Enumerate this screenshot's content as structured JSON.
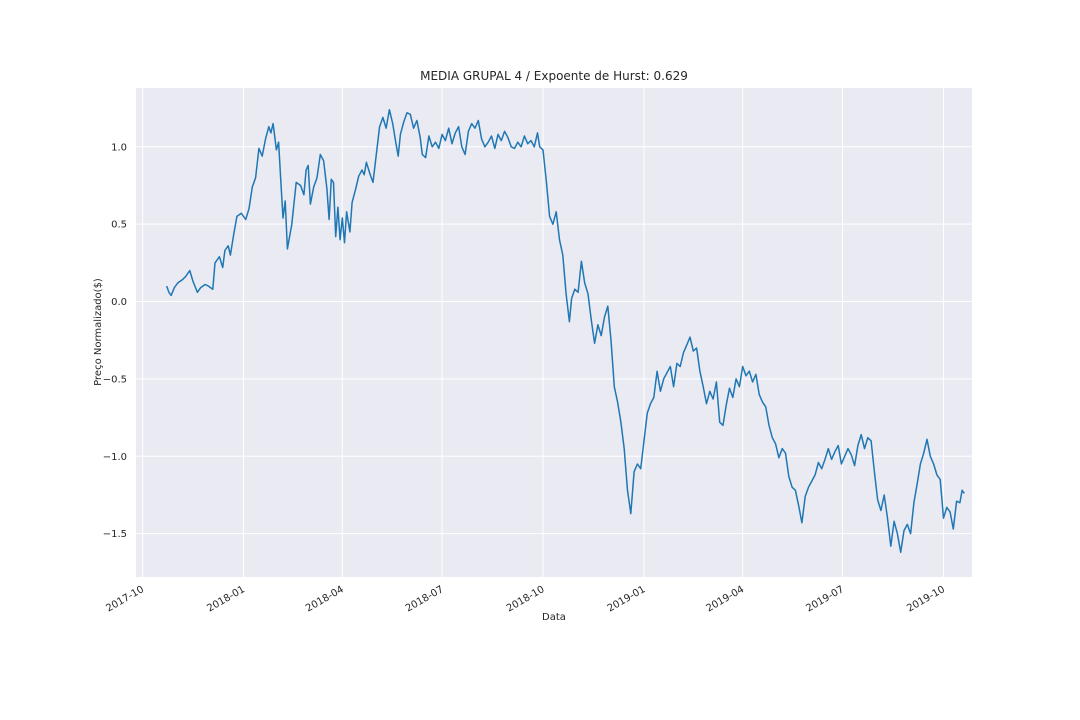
{
  "chart_data": {
    "type": "line",
    "title": "MEDIA GRUPAL 4 / Expoente de Hurst: 0.629",
    "xlabel": "Data",
    "ylabel": "Preço Normalizado($)",
    "xlim": [
      "2017-09-25",
      "2019-10-27"
    ],
    "ylim": [
      -1.78,
      1.38
    ],
    "grid": true,
    "background": "#eaeaf2",
    "line_color": "#1f77b4",
    "x_ticks": [
      "2017-10-01",
      "2018-01-01",
      "2018-04-01",
      "2018-07-01",
      "2018-10-01",
      "2019-01-01",
      "2019-04-01",
      "2019-07-01",
      "2019-10-01"
    ],
    "x_tick_labels": [
      "2017-10",
      "2018-01",
      "2018-04",
      "2018-07",
      "2018-10",
      "2019-01",
      "2019-04",
      "2019-07",
      "2019-10"
    ],
    "y_ticks": [
      1.0,
      0.5,
      0.0,
      -0.5,
      -1.0,
      -1.5
    ],
    "y_tick_labels": [
      "1.0",
      "0.5",
      "0.0",
      "−0.5",
      "−1.0",
      "−1.5"
    ],
    "series": [
      {
        "points": [
          [
            "2017-10-23",
            0.1
          ],
          [
            "2017-10-25",
            0.06
          ],
          [
            "2017-10-27",
            0.04
          ],
          [
            "2017-10-30",
            0.09
          ],
          [
            "2017-11-02",
            0.12
          ],
          [
            "2017-11-06",
            0.14
          ],
          [
            "2017-11-09",
            0.16
          ],
          [
            "2017-11-13",
            0.2
          ],
          [
            "2017-11-16",
            0.13
          ],
          [
            "2017-11-20",
            0.06
          ],
          [
            "2017-11-23",
            0.09
          ],
          [
            "2017-11-27",
            0.11
          ],
          [
            "2017-11-30",
            0.1
          ],
          [
            "2017-12-04",
            0.08
          ],
          [
            "2017-12-06",
            0.25
          ],
          [
            "2017-12-10",
            0.29
          ],
          [
            "2017-12-13",
            0.22
          ],
          [
            "2017-12-15",
            0.33
          ],
          [
            "2017-12-18",
            0.36
          ],
          [
            "2017-12-20",
            0.3
          ],
          [
            "2017-12-23",
            0.43
          ],
          [
            "2017-12-26",
            0.55
          ],
          [
            "2017-12-30",
            0.57
          ],
          [
            "2018-01-03",
            0.53
          ],
          [
            "2018-01-06",
            0.6
          ],
          [
            "2018-01-09",
            0.74
          ],
          [
            "2018-01-12",
            0.8
          ],
          [
            "2018-01-15",
            0.99
          ],
          [
            "2018-01-18",
            0.94
          ],
          [
            "2018-01-21",
            1.05
          ],
          [
            "2018-01-24",
            1.13
          ],
          [
            "2018-01-26",
            1.09
          ],
          [
            "2018-01-28",
            1.15
          ],
          [
            "2018-01-31",
            0.98
          ],
          [
            "2018-02-02",
            1.03
          ],
          [
            "2018-02-04",
            0.78
          ],
          [
            "2018-02-06",
            0.54
          ],
          [
            "2018-02-08",
            0.65
          ],
          [
            "2018-02-10",
            0.34
          ],
          [
            "2018-02-14",
            0.5
          ],
          [
            "2018-02-18",
            0.77
          ],
          [
            "2018-02-22",
            0.75
          ],
          [
            "2018-02-25",
            0.69
          ],
          [
            "2018-02-27",
            0.85
          ],
          [
            "2018-03-01",
            0.88
          ],
          [
            "2018-03-03",
            0.63
          ],
          [
            "2018-03-06",
            0.74
          ],
          [
            "2018-03-09",
            0.8
          ],
          [
            "2018-03-12",
            0.95
          ],
          [
            "2018-03-15",
            0.91
          ],
          [
            "2018-03-18",
            0.73
          ],
          [
            "2018-03-20",
            0.53
          ],
          [
            "2018-03-22",
            0.79
          ],
          [
            "2018-03-24",
            0.77
          ],
          [
            "2018-03-26",
            0.42
          ],
          [
            "2018-03-28",
            0.61
          ],
          [
            "2018-03-30",
            0.4
          ],
          [
            "2018-04-01",
            0.54
          ],
          [
            "2018-04-03",
            0.38
          ],
          [
            "2018-04-05",
            0.58
          ],
          [
            "2018-04-08",
            0.45
          ],
          [
            "2018-04-10",
            0.64
          ],
          [
            "2018-04-13",
            0.72
          ],
          [
            "2018-04-16",
            0.81
          ],
          [
            "2018-04-19",
            0.85
          ],
          [
            "2018-04-21",
            0.82
          ],
          [
            "2018-04-23",
            0.9
          ],
          [
            "2018-04-26",
            0.83
          ],
          [
            "2018-04-29",
            0.77
          ],
          [
            "2018-05-02",
            0.95
          ],
          [
            "2018-05-05",
            1.13
          ],
          [
            "2018-05-08",
            1.19
          ],
          [
            "2018-05-11",
            1.12
          ],
          [
            "2018-05-14",
            1.24
          ],
          [
            "2018-05-17",
            1.15
          ],
          [
            "2018-05-20",
            1.02
          ],
          [
            "2018-05-22",
            0.94
          ],
          [
            "2018-05-24",
            1.08
          ],
          [
            "2018-05-27",
            1.16
          ],
          [
            "2018-05-30",
            1.22
          ],
          [
            "2018-06-02",
            1.21
          ],
          [
            "2018-06-05",
            1.12
          ],
          [
            "2018-06-08",
            1.17
          ],
          [
            "2018-06-11",
            1.06
          ],
          [
            "2018-06-13",
            0.95
          ],
          [
            "2018-06-16",
            0.93
          ],
          [
            "2018-06-19",
            1.07
          ],
          [
            "2018-06-22",
            1.0
          ],
          [
            "2018-06-25",
            1.03
          ],
          [
            "2018-06-28",
            0.99
          ],
          [
            "2018-07-01",
            1.08
          ],
          [
            "2018-07-04",
            1.04
          ],
          [
            "2018-07-07",
            1.12
          ],
          [
            "2018-07-10",
            1.02
          ],
          [
            "2018-07-13",
            1.09
          ],
          [
            "2018-07-16",
            1.13
          ],
          [
            "2018-07-19",
            1.0
          ],
          [
            "2018-07-22",
            0.95
          ],
          [
            "2018-07-25",
            1.1
          ],
          [
            "2018-07-28",
            1.15
          ],
          [
            "2018-07-31",
            1.12
          ],
          [
            "2018-08-03",
            1.17
          ],
          [
            "2018-08-06",
            1.05
          ],
          [
            "2018-08-09",
            1.0
          ],
          [
            "2018-08-12",
            1.03
          ],
          [
            "2018-08-15",
            1.07
          ],
          [
            "2018-08-18",
            0.99
          ],
          [
            "2018-08-21",
            1.08
          ],
          [
            "2018-08-24",
            1.04
          ],
          [
            "2018-08-27",
            1.1
          ],
          [
            "2018-08-30",
            1.06
          ],
          [
            "2018-09-02",
            1.0
          ],
          [
            "2018-09-05",
            0.99
          ],
          [
            "2018-09-08",
            1.03
          ],
          [
            "2018-09-11",
            1.0
          ],
          [
            "2018-09-14",
            1.07
          ],
          [
            "2018-09-17",
            1.02
          ],
          [
            "2018-09-20",
            1.04
          ],
          [
            "2018-09-23",
            1.0
          ],
          [
            "2018-09-26",
            1.09
          ],
          [
            "2018-09-28",
            1.0
          ],
          [
            "2018-10-01",
            0.98
          ],
          [
            "2018-10-04",
            0.78
          ],
          [
            "2018-10-07",
            0.55
          ],
          [
            "2018-10-10",
            0.5
          ],
          [
            "2018-10-13",
            0.58
          ],
          [
            "2018-10-16",
            0.4
          ],
          [
            "2018-10-19",
            0.3
          ],
          [
            "2018-10-22",
            0.05
          ],
          [
            "2018-10-25",
            -0.13
          ],
          [
            "2018-10-27",
            0.02
          ],
          [
            "2018-10-30",
            0.08
          ],
          [
            "2018-11-02",
            0.06
          ],
          [
            "2018-11-05",
            0.26
          ],
          [
            "2018-11-08",
            0.12
          ],
          [
            "2018-11-11",
            0.05
          ],
          [
            "2018-11-14",
            -0.12
          ],
          [
            "2018-11-17",
            -0.27
          ],
          [
            "2018-11-20",
            -0.15
          ],
          [
            "2018-11-23",
            -0.22
          ],
          [
            "2018-11-26",
            -0.1
          ],
          [
            "2018-11-29",
            -0.03
          ],
          [
            "2018-12-02",
            -0.25
          ],
          [
            "2018-12-05",
            -0.55
          ],
          [
            "2018-12-08",
            -0.65
          ],
          [
            "2018-12-11",
            -0.78
          ],
          [
            "2018-12-14",
            -0.95
          ],
          [
            "2018-12-17",
            -1.22
          ],
          [
            "2018-12-20",
            -1.37
          ],
          [
            "2018-12-23",
            -1.1
          ],
          [
            "2018-12-26",
            -1.05
          ],
          [
            "2018-12-29",
            -1.08
          ],
          [
            "2019-01-01",
            -0.9
          ],
          [
            "2019-01-04",
            -0.72
          ],
          [
            "2019-01-07",
            -0.66
          ],
          [
            "2019-01-10",
            -0.62
          ],
          [
            "2019-01-13",
            -0.45
          ],
          [
            "2019-01-16",
            -0.58
          ],
          [
            "2019-01-19",
            -0.5
          ],
          [
            "2019-01-22",
            -0.46
          ],
          [
            "2019-01-25",
            -0.42
          ],
          [
            "2019-01-28",
            -0.55
          ],
          [
            "2019-01-31",
            -0.4
          ],
          [
            "2019-02-03",
            -0.42
          ],
          [
            "2019-02-06",
            -0.33
          ],
          [
            "2019-02-09",
            -0.28
          ],
          [
            "2019-02-12",
            -0.23
          ],
          [
            "2019-02-15",
            -0.32
          ],
          [
            "2019-02-18",
            -0.3
          ],
          [
            "2019-02-21",
            -0.45
          ],
          [
            "2019-02-24",
            -0.55
          ],
          [
            "2019-02-27",
            -0.66
          ],
          [
            "2019-03-02",
            -0.58
          ],
          [
            "2019-03-05",
            -0.63
          ],
          [
            "2019-03-08",
            -0.52
          ],
          [
            "2019-03-11",
            -0.78
          ],
          [
            "2019-03-14",
            -0.8
          ],
          [
            "2019-03-17",
            -0.67
          ],
          [
            "2019-03-20",
            -0.56
          ],
          [
            "2019-03-23",
            -0.62
          ],
          [
            "2019-03-26",
            -0.5
          ],
          [
            "2019-03-29",
            -0.55
          ],
          [
            "2019-04-01",
            -0.42
          ],
          [
            "2019-04-04",
            -0.48
          ],
          [
            "2019-04-07",
            -0.45
          ],
          [
            "2019-04-10",
            -0.52
          ],
          [
            "2019-04-13",
            -0.47
          ],
          [
            "2019-04-16",
            -0.6
          ],
          [
            "2019-04-19",
            -0.65
          ],
          [
            "2019-04-22",
            -0.68
          ],
          [
            "2019-04-25",
            -0.8
          ],
          [
            "2019-04-28",
            -0.88
          ],
          [
            "2019-05-01",
            -0.92
          ],
          [
            "2019-05-04",
            -1.01
          ],
          [
            "2019-05-07",
            -0.95
          ],
          [
            "2019-05-10",
            -0.98
          ],
          [
            "2019-05-13",
            -1.13
          ],
          [
            "2019-05-16",
            -1.2
          ],
          [
            "2019-05-19",
            -1.22
          ],
          [
            "2019-05-22",
            -1.32
          ],
          [
            "2019-05-25",
            -1.43
          ],
          [
            "2019-05-28",
            -1.26
          ],
          [
            "2019-05-31",
            -1.2
          ],
          [
            "2019-06-03",
            -1.16
          ],
          [
            "2019-06-06",
            -1.12
          ],
          [
            "2019-06-09",
            -1.04
          ],
          [
            "2019-06-12",
            -1.08
          ],
          [
            "2019-06-15",
            -1.02
          ],
          [
            "2019-06-18",
            -0.95
          ],
          [
            "2019-06-21",
            -1.02
          ],
          [
            "2019-06-24",
            -0.97
          ],
          [
            "2019-06-27",
            -0.93
          ],
          [
            "2019-06-30",
            -1.05
          ],
          [
            "2019-07-03",
            -1.0
          ],
          [
            "2019-07-06",
            -0.95
          ],
          [
            "2019-07-09",
            -0.99
          ],
          [
            "2019-07-12",
            -1.06
          ],
          [
            "2019-07-15",
            -0.93
          ],
          [
            "2019-07-18",
            -0.86
          ],
          [
            "2019-07-21",
            -0.95
          ],
          [
            "2019-07-24",
            -0.88
          ],
          [
            "2019-07-27",
            -0.9
          ],
          [
            "2019-07-30",
            -1.1
          ],
          [
            "2019-08-02",
            -1.28
          ],
          [
            "2019-08-05",
            -1.35
          ],
          [
            "2019-08-08",
            -1.25
          ],
          [
            "2019-08-11",
            -1.4
          ],
          [
            "2019-08-14",
            -1.58
          ],
          [
            "2019-08-17",
            -1.42
          ],
          [
            "2019-08-20",
            -1.5
          ],
          [
            "2019-08-23",
            -1.62
          ],
          [
            "2019-08-26",
            -1.48
          ],
          [
            "2019-08-29",
            -1.44
          ],
          [
            "2019-09-01",
            -1.5
          ],
          [
            "2019-09-04",
            -1.3
          ],
          [
            "2019-09-07",
            -1.18
          ],
          [
            "2019-09-10",
            -1.05
          ],
          [
            "2019-09-13",
            -0.98
          ],
          [
            "2019-09-16",
            -0.89
          ],
          [
            "2019-09-19",
            -1.0
          ],
          [
            "2019-09-22",
            -1.05
          ],
          [
            "2019-09-25",
            -1.12
          ],
          [
            "2019-09-28",
            -1.15
          ],
          [
            "2019-10-01",
            -1.4
          ],
          [
            "2019-10-04",
            -1.33
          ],
          [
            "2019-10-07",
            -1.36
          ],
          [
            "2019-10-10",
            -1.47
          ],
          [
            "2019-10-13",
            -1.29
          ],
          [
            "2019-10-16",
            -1.3
          ],
          [
            "2019-10-18",
            -1.22
          ],
          [
            "2019-10-20",
            -1.24
          ]
        ]
      }
    ]
  }
}
